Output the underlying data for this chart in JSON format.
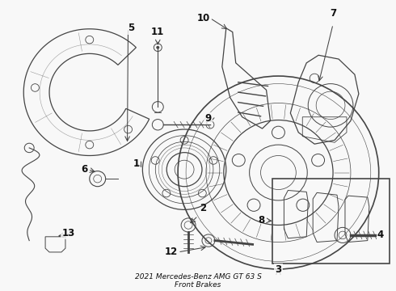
{
  "title": "2021 Mercedes-Benz AMG GT 63 S\nFront Brakes",
  "bg_color": "#f8f8f8",
  "line_color": "#444444",
  "text_color": "#111111",
  "figsize": [
    4.9,
    3.6
  ],
  "dpi": 100
}
